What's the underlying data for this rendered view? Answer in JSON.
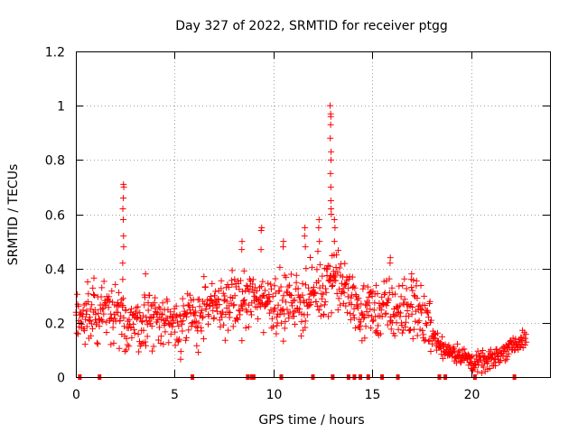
{
  "chart_data": {
    "type": "scatter",
    "title": "Day 327 of 2022, SRMTID for receiver ptgg",
    "xlabel": "GPS time / hours",
    "ylabel": "SRMTID / TECUs",
    "xlim": [
      0,
      24
    ],
    "ylim": [
      0,
      1.2
    ],
    "grid": true,
    "xticks": [
      0,
      5,
      10,
      15,
      20
    ],
    "yticks": [
      0,
      0.2,
      0.4,
      0.6,
      0.8,
      1,
      1.2
    ],
    "xtick_labels": [
      "0",
      "5",
      "10",
      "15",
      "20"
    ],
    "ytick_labels": [
      "0",
      "0.2",
      "0.4",
      "0.6",
      "0.8",
      "1",
      "1.2"
    ],
    "color": "#ff0000",
    "marker": "plus",
    "baseline_hours": [
      0.2,
      1.2,
      5.9,
      8.7,
      8.9,
      9.0,
      10.4,
      12.0,
      13.0,
      13.8,
      14.1,
      14.4,
      14.8,
      15.5,
      16.3,
      18.4,
      18.7,
      20.2,
      22.2
    ],
    "series": [
      {
        "name": "SRMTID",
        "anchors": [
          {
            "x": 0.0,
            "y": 0.2
          },
          {
            "x": 0.6,
            "y": 0.25
          },
          {
            "x": 1.5,
            "y": 0.23
          },
          {
            "x": 2.5,
            "y": 0.2
          },
          {
            "x": 3.5,
            "y": 0.21
          },
          {
            "x": 4.5,
            "y": 0.21
          },
          {
            "x": 5.5,
            "y": 0.2
          },
          {
            "x": 6.5,
            "y": 0.24
          },
          {
            "x": 7.5,
            "y": 0.27
          },
          {
            "x": 8.5,
            "y": 0.28
          },
          {
            "x": 9.5,
            "y": 0.29
          },
          {
            "x": 10.5,
            "y": 0.27
          },
          {
            "x": 11.5,
            "y": 0.28
          },
          {
            "x": 12.5,
            "y": 0.33
          },
          {
            "x": 13.0,
            "y": 0.38
          },
          {
            "x": 13.5,
            "y": 0.33
          },
          {
            "x": 14.5,
            "y": 0.24
          },
          {
            "x": 15.5,
            "y": 0.25
          },
          {
            "x": 16.5,
            "y": 0.24
          },
          {
            "x": 17.3,
            "y": 0.26
          },
          {
            "x": 17.8,
            "y": 0.19
          },
          {
            "x": 18.5,
            "y": 0.11
          },
          {
            "x": 19.5,
            "y": 0.08
          },
          {
            "x": 20.2,
            "y": 0.05
          },
          {
            "x": 21.0,
            "y": 0.06
          },
          {
            "x": 21.6,
            "y": 0.09
          },
          {
            "x": 22.0,
            "y": 0.12
          },
          {
            "x": 22.8,
            "y": 0.13
          }
        ],
        "peaks": [
          {
            "x": 2.4,
            "y": [
              0.42,
              0.48,
              0.52,
              0.58,
              0.62,
              0.66,
              0.7,
              0.71,
              0.36
            ]
          },
          {
            "x": 12.9,
            "y": [
              0.7,
              0.75,
              0.8,
              0.83,
              0.88,
              0.93,
              0.96,
              0.97,
              1.0,
              0.6,
              0.62,
              0.65
            ]
          },
          {
            "x": 13.1,
            "y": [
              0.55,
              0.58,
              0.5,
              0.45
            ]
          },
          {
            "x": 11.6,
            "y": [
              0.55,
              0.52,
              0.48
            ]
          },
          {
            "x": 12.3,
            "y": [
              0.58,
              0.55,
              0.5
            ]
          },
          {
            "x": 9.4,
            "y": [
              0.55,
              0.54,
              0.47
            ]
          },
          {
            "x": 8.4,
            "y": [
              0.5,
              0.47
            ]
          },
          {
            "x": 10.5,
            "y": [
              0.5,
              0.48
            ]
          },
          {
            "x": 15.9,
            "y": [
              0.44,
              0.42
            ]
          },
          {
            "x": 17.0,
            "y": [
              0.38,
              0.36
            ]
          },
          {
            "x": 3.5,
            "y": [
              0.38
            ]
          }
        ]
      }
    ]
  }
}
